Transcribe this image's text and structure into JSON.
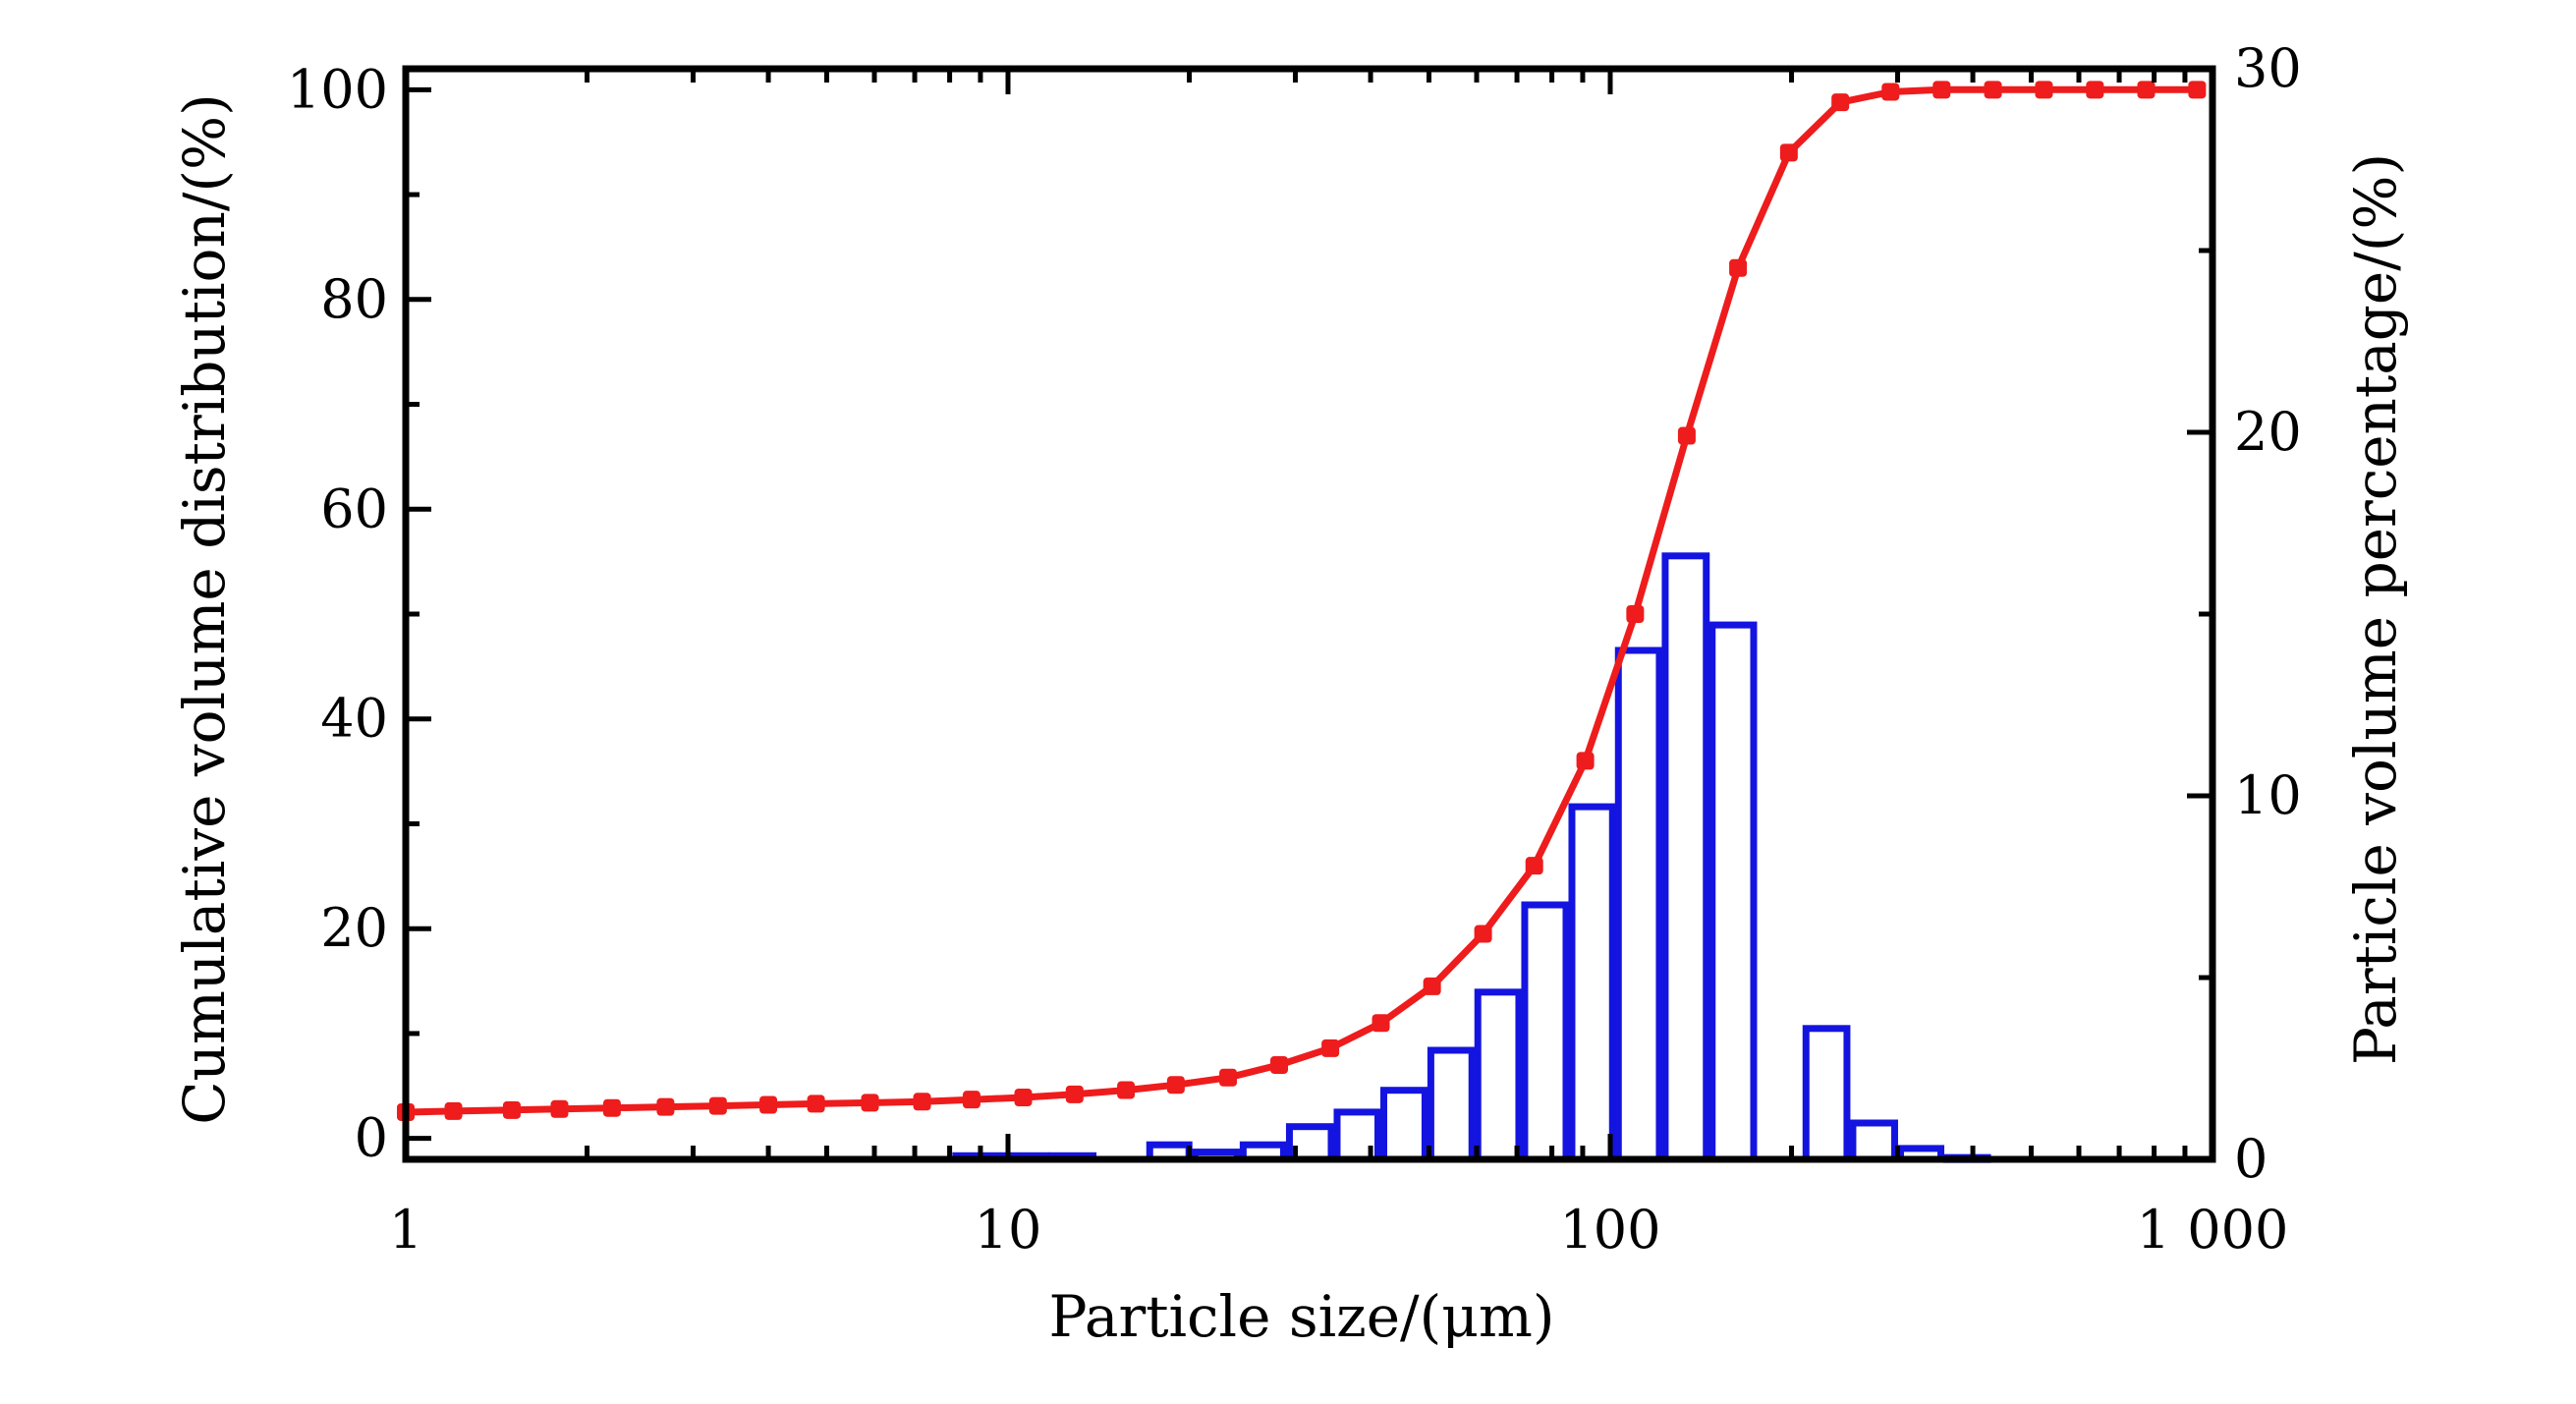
{
  "chart_data": {
    "type": "bar+line",
    "xlabel": "Particle size/(μm)",
    "ylabel_left": "Cumulative volume distribution/(%)",
    "ylabel_right": "Particle volume percentage/(%)",
    "x_scale": "log",
    "xlim": [
      1,
      1000
    ],
    "ylim_left": [
      -2,
      102
    ],
    "ylim_right": [
      0,
      30
    ],
    "x_ticks": [
      1,
      10,
      100,
      1000
    ],
    "x_tick_labels": [
      "1",
      "10",
      "100",
      "1 000"
    ],
    "y_left_ticks": [
      0,
      20,
      40,
      60,
      80,
      100
    ],
    "y_left_tick_labels": [
      "0",
      "20",
      "40",
      "60",
      "80",
      "100"
    ],
    "y_right_ticks": [
      0,
      10,
      20,
      30
    ],
    "y_right_tick_labels": [
      "0",
      "10",
      "20",
      "30"
    ],
    "grid": false,
    "colors": {
      "line": "#ee1c1c",
      "bars": "#1414e0",
      "bar_fill": "#ffffff",
      "axes": "#000000"
    },
    "cumulative_series": {
      "x": [
        1.0,
        1.2,
        1.5,
        1.8,
        2.2,
        2.7,
        3.3,
        4.0,
        4.8,
        5.9,
        7.2,
        8.7,
        10.6,
        12.9,
        15.7,
        19.0,
        23.2,
        28.2,
        34.3,
        41.6,
        50.6,
        61.5,
        74.8,
        90.9,
        110,
        134,
        163,
        198,
        241,
        292,
        355,
        432,
        525,
        638,
        776,
        943
      ],
      "y": [
        2.5,
        2.6,
        2.7,
        2.8,
        2.9,
        3.0,
        3.1,
        3.2,
        3.3,
        3.4,
        3.5,
        3.7,
        3.9,
        4.2,
        4.6,
        5.1,
        5.8,
        7.0,
        8.6,
        11.0,
        14.5,
        19.5,
        26.0,
        36.0,
        50.0,
        67.0,
        83.0,
        94.0,
        98.8,
        99.8,
        100,
        100,
        100,
        100,
        100,
        100
      ]
    },
    "histogram_series": {
      "bins": [
        {
          "x0": 8.1,
          "x1": 9.7,
          "value": 0.1
        },
        {
          "x0": 9.7,
          "x1": 11.7,
          "value": 0.1
        },
        {
          "x0": 11.7,
          "x1": 14.0,
          "value": 0.1
        },
        {
          "x0": 17.0,
          "x1": 20.2,
          "value": 0.4
        },
        {
          "x0": 20.2,
          "x1": 24.3,
          "value": 0.2
        },
        {
          "x0": 24.3,
          "x1": 29.0,
          "value": 0.4
        },
        {
          "x0": 29.0,
          "x1": 34.8,
          "value": 0.9
        },
        {
          "x0": 34.8,
          "x1": 41.6,
          "value": 1.3
        },
        {
          "x0": 41.6,
          "x1": 49.8,
          "value": 1.9
        },
        {
          "x0": 49.8,
          "x1": 59.6,
          "value": 3.0
        },
        {
          "x0": 59.6,
          "x1": 71.3,
          "value": 4.6
        },
        {
          "x0": 71.3,
          "x1": 85.4,
          "value": 7.0
        },
        {
          "x0": 85.4,
          "x1": 102,
          "value": 9.7
        },
        {
          "x0": 102,
          "x1": 122,
          "value": 14.0
        },
        {
          "x0": 122,
          "x1": 146,
          "value": 16.6
        },
        {
          "x0": 146,
          "x1": 175,
          "value": 14.7
        },
        {
          "x0": 175,
          "x1": 209,
          "value": 0
        },
        {
          "x0": 209,
          "x1": 250,
          "value": 3.6
        },
        {
          "x0": 250,
          "x1": 300,
          "value": 1.0
        },
        {
          "x0": 300,
          "x1": 358,
          "value": 0.3
        },
        {
          "x0": 358,
          "x1": 428,
          "value": 0.05
        }
      ]
    }
  }
}
